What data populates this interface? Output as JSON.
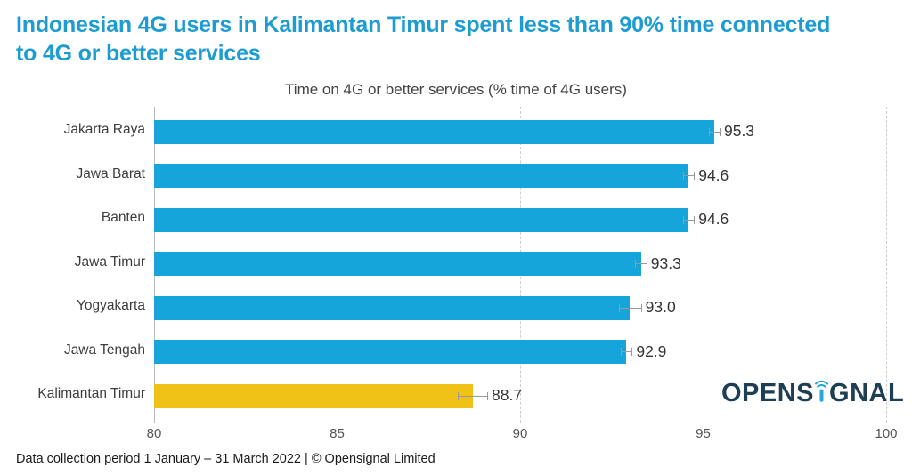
{
  "header": {
    "title_line1": "Indonesian 4G users in Kalimantan Timur spent less than 90% time connected",
    "title_line2": "to 4G or better services"
  },
  "chart_data": {
    "type": "bar",
    "orientation": "horizontal",
    "title": "Time on 4G or better services (% time of 4G users)",
    "categories": [
      "Jakarta Raya",
      "Jawa Barat",
      "Banten",
      "Jawa Timur",
      "Yogyakarta",
      "Jawa Tengah",
      "Kalimantan Timur"
    ],
    "values": [
      95.3,
      94.6,
      94.6,
      93.3,
      93.0,
      92.9,
      88.7
    ],
    "value_labels": [
      "95.3",
      "94.6",
      "94.6",
      "93.3",
      "93.0",
      "92.9",
      "88.7"
    ],
    "error_margins": [
      0.15,
      0.15,
      0.15,
      0.15,
      0.3,
      0.15,
      0.4
    ],
    "highlight_index": 6,
    "xlim": [
      80,
      100
    ],
    "xticks": [
      80,
      85,
      90,
      95,
      100
    ],
    "grid": true,
    "legend": false,
    "bar_color": "#16a5da",
    "highlight_color": "#f0c117",
    "error_bar_color": "#999999"
  },
  "logo": {
    "part1": "OPENS",
    "part2": "GNAL",
    "name": "Opensignal",
    "text_color": "#1d3e53",
    "antenna_color": "#29a8df",
    "arc_color": "#25a5cd"
  },
  "footer": {
    "text": "Data collection period 1 January – 31 March 2022  |  © Opensignal Limited"
  }
}
